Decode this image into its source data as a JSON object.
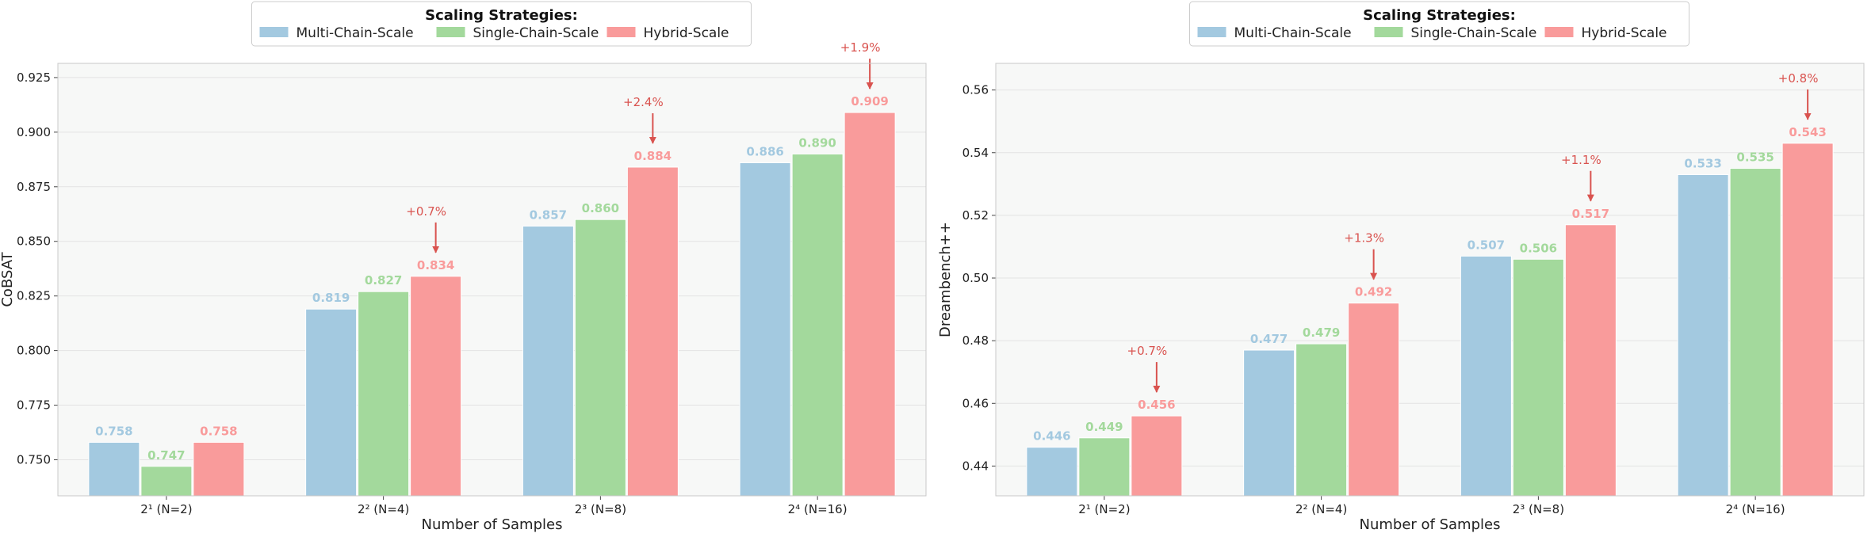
{
  "legend": {
    "title": "Scaling Strategies:",
    "items": [
      "Multi-Chain-Scale",
      "Single-Chain-Scale",
      "Hybrid-Scale"
    ]
  },
  "colors": {
    "multi": "#a3c9e0",
    "single": "#a3d99c",
    "hybrid": "#f99b9b",
    "annotation": "#d9534f",
    "plot_bg": "#f7f8f7"
  },
  "chart_data": [
    {
      "type": "bar",
      "categories": [
        "2¹ (N=2)",
        "2² (N=4)",
        "2³ (N=8)",
        "2⁴ (N=16)"
      ],
      "series": [
        {
          "name": "Multi-Chain-Scale",
          "values": [
            0.758,
            0.819,
            0.857,
            0.886
          ],
          "labels": [
            "0.758",
            "0.819",
            "0.857",
            "0.886"
          ]
        },
        {
          "name": "Single-Chain-Scale",
          "values": [
            0.747,
            0.827,
            0.86,
            0.89
          ],
          "labels": [
            "0.747",
            "0.827",
            "0.860",
            "0.890"
          ]
        },
        {
          "name": "Hybrid-Scale",
          "values": [
            0.758,
            0.834,
            0.884,
            0.909
          ],
          "labels": [
            "0.758",
            "0.834",
            "0.884",
            "0.909"
          ]
        }
      ],
      "annotations": [
        "",
        "+0.7%",
        "+2.4%",
        "+1.9%"
      ],
      "xlabel": "Number of Samples",
      "ylabel": "CoBSAT",
      "ylim": [
        0.7335,
        0.9315
      ],
      "yticks": [
        0.75,
        0.775,
        0.8,
        0.825,
        0.85,
        0.875,
        0.9,
        0.925
      ],
      "ytick_labels": [
        "0.750",
        "0.775",
        "0.800",
        "0.825",
        "0.850",
        "0.875",
        "0.900",
        "0.925"
      ],
      "grid": true,
      "legend_position": "top-center"
    },
    {
      "type": "bar",
      "categories": [
        "2¹ (N=2)",
        "2² (N=4)",
        "2³ (N=8)",
        "2⁴ (N=16)"
      ],
      "series": [
        {
          "name": "Multi-Chain-Scale",
          "values": [
            0.446,
            0.477,
            0.507,
            0.533
          ],
          "labels": [
            "0.446",
            "0.477",
            "0.507",
            "0.533"
          ]
        },
        {
          "name": "Single-Chain-Scale",
          "values": [
            0.449,
            0.479,
            0.506,
            0.535
          ],
          "labels": [
            "0.449",
            "0.479",
            "0.506",
            "0.535"
          ]
        },
        {
          "name": "Hybrid-Scale",
          "values": [
            0.456,
            0.492,
            0.517,
            0.543
          ],
          "labels": [
            "0.456",
            "0.492",
            "0.517",
            "0.543"
          ]
        }
      ],
      "annotations": [
        "+0.7%",
        "+1.3%",
        "+1.1%",
        "+0.8%"
      ],
      "xlabel": "Number of Samples",
      "ylabel": "Dreambench++",
      "ylim": [
        0.4305,
        0.5685
      ],
      "yticks": [
        0.44,
        0.46,
        0.48,
        0.5,
        0.52,
        0.54,
        0.56
      ],
      "ytick_labels": [
        "0.44",
        "0.46",
        "0.48",
        "0.50",
        "0.52",
        "0.54",
        "0.56"
      ],
      "grid": true,
      "legend_position": "top-center"
    }
  ]
}
